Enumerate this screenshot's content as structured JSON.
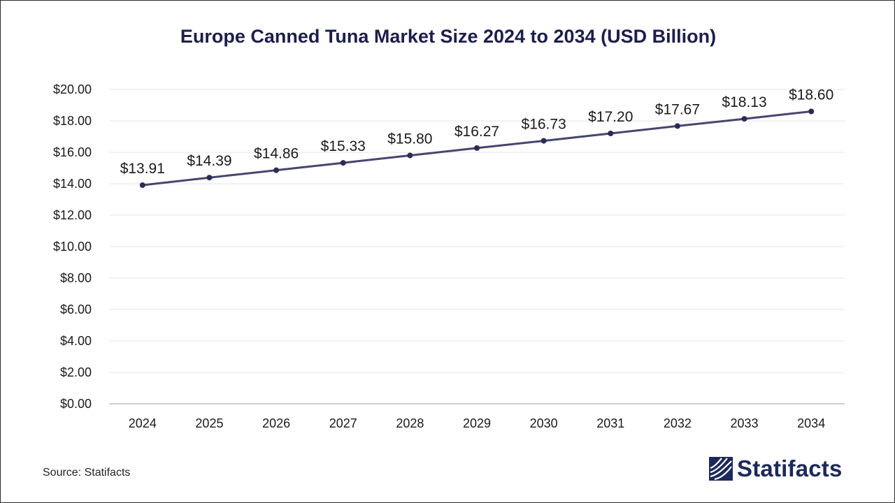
{
  "chart_data": {
    "type": "line",
    "title": "Europe Canned Tuna Market Size 2024 to 2034 (USD Billion)",
    "xlabel": "",
    "ylabel": "",
    "categories": [
      "2024",
      "2025",
      "2026",
      "2027",
      "2028",
      "2029",
      "2030",
      "2031",
      "2032",
      "2033",
      "2034"
    ],
    "series": [
      {
        "name": "Market Size (USD Billion)",
        "values": [
          13.91,
          14.39,
          14.86,
          15.33,
          15.8,
          16.27,
          16.73,
          17.2,
          17.67,
          18.13,
          18.6
        ]
      }
    ],
    "data_labels": [
      "$13.91",
      "$14.39",
      "$14.86",
      "$15.33",
      "$15.80",
      "$16.27",
      "$16.73",
      "$17.20",
      "$17.67",
      "$18.13",
      "$18.60"
    ],
    "y_tick_values": [
      0,
      2,
      4,
      6,
      8,
      10,
      12,
      14,
      16,
      18,
      20
    ],
    "y_tick_labels": [
      "$0.00",
      "$2.00",
      "$4.00",
      "$6.00",
      "$8.00",
      "$10.00",
      "$12.00",
      "$14.00",
      "$16.00",
      "$18.00",
      "$20.00"
    ],
    "ylim": [
      0,
      20
    ],
    "grid": true,
    "legend": "none",
    "line_color": "#45466e",
    "marker_color": "#2a2b57"
  },
  "footer": {
    "source": "Source: Statifacts",
    "brand": "Statifacts"
  }
}
